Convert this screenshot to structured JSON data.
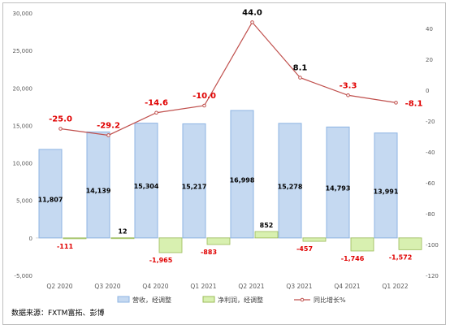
{
  "chart_data": {
    "type": "bar",
    "categories": [
      "Q2 2020",
      "Q3 2020",
      "Q4 2020",
      "Q1 2021",
      "Q2 2021",
      "Q3 2021",
      "Q4 2021",
      "Q1 2022"
    ],
    "series": [
      {
        "name": "营收，经调整",
        "type": "bar",
        "axis": "left",
        "color": "#c5d9f1",
        "values": [
          11807,
          14139,
          15304,
          15217,
          16998,
          15278,
          14793,
          13991
        ],
        "labels": [
          "11,807",
          "14,139",
          "15,304",
          "15,217",
          "16,998",
          "15,278",
          "14,793",
          "13,991"
        ]
      },
      {
        "name": "净利润，经调整",
        "type": "bar",
        "axis": "left",
        "color": "#d8f0b0",
        "values": [
          -111,
          12,
          -1965,
          -883,
          852,
          -457,
          -1746,
          -1572
        ],
        "labels": [
          "-111",
          "12",
          "-1,965",
          "-883",
          "852",
          "-457",
          "-1,746",
          "-1,572"
        ]
      },
      {
        "name": "同比增长%",
        "type": "line",
        "axis": "right",
        "color": "#c0504d",
        "values": [
          -25.0,
          -29.2,
          -14.6,
          -10.0,
          44.0,
          8.1,
          -3.3,
          -8.1
        ],
        "labels": [
          "-25.0",
          "-29.2",
          "-14.6",
          "-10.0",
          "44.0",
          "8.1",
          "-3.3",
          "-8.1"
        ]
      }
    ],
    "left_axis": {
      "ylim": [
        -5000,
        30000
      ],
      "step": 5000,
      "ticks": [
        "-5,000",
        "0",
        "5,000",
        "10,000",
        "15,000",
        "20,000",
        "25,000",
        "30,000"
      ]
    },
    "right_axis": {
      "ylim": [
        -120,
        50
      ],
      "step": 20,
      "ticks": [
        "-120",
        "-100",
        "-80",
        "-60",
        "-40",
        "-20",
        "0",
        "20",
        "40"
      ]
    },
    "grid": false,
    "legend": "bottom"
  },
  "source": "数据来源：FXTM富拓、彭博"
}
